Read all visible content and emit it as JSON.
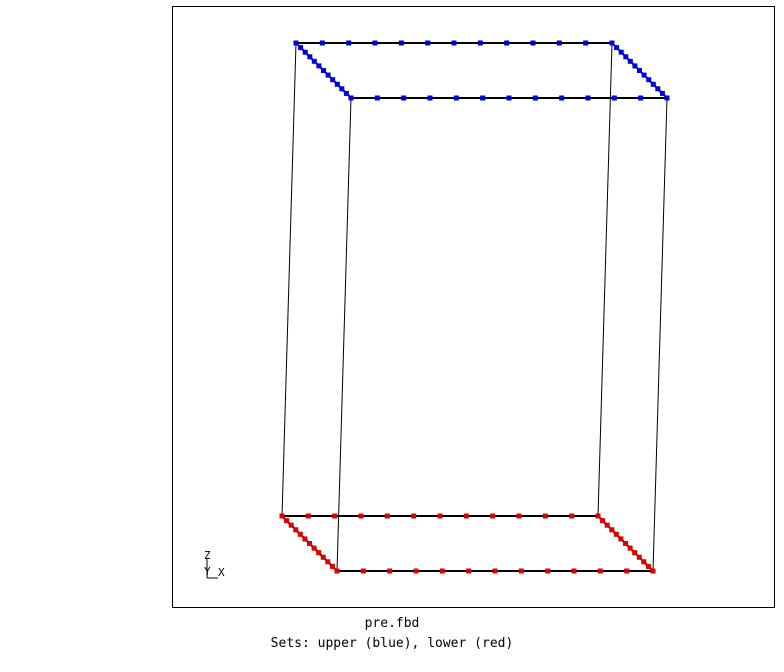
{
  "file_name": "pre.fbd",
  "sets_caption": "Sets: upper (blue), lower (red)",
  "triad": {
    "z": "Z",
    "y": "Y",
    "x": "X"
  },
  "colors": {
    "frame": "#000000",
    "edges": "#000000",
    "upper_set": "#0000dd",
    "lower_set": "#dd0000",
    "background": "#ffffff"
  },
  "sets": [
    {
      "name": "upper",
      "color_name": "blue"
    },
    {
      "name": "lower",
      "color_name": "red"
    }
  ]
}
